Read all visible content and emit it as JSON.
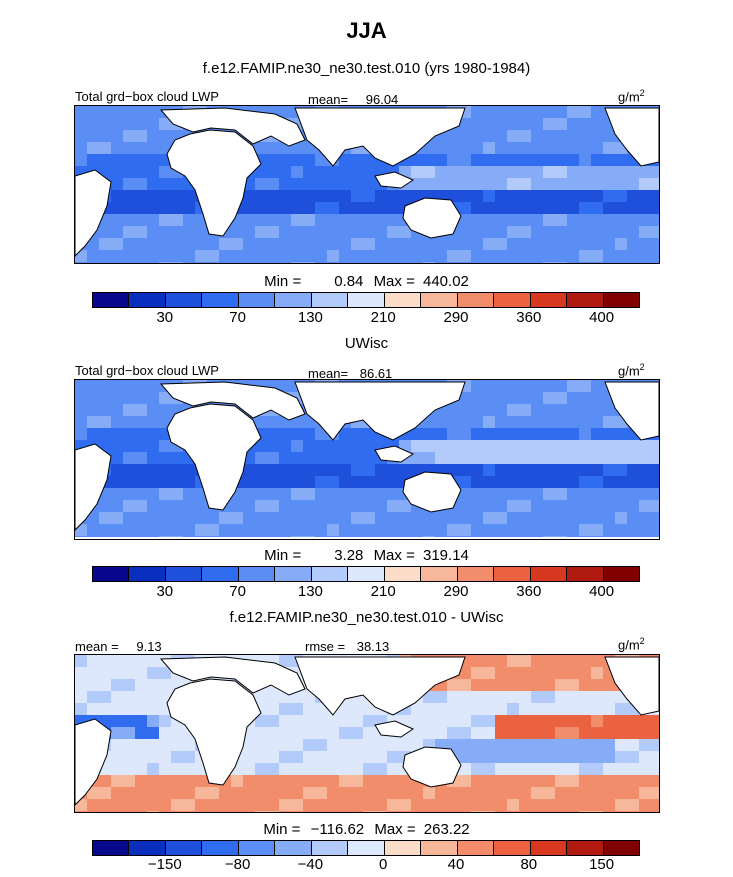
{
  "figure": {
    "title": "JJA",
    "unit_label": "g/m",
    "unit_sup": "2"
  },
  "colors": {
    "sequential": [
      "#08088c",
      "#0a2fbf",
      "#1e50dc",
      "#2f6cf0",
      "#5a8ef5",
      "#86abf7",
      "#b3cbfa",
      "#dde8fc",
      "#fbdcc9",
      "#f7b79b",
      "#f28d6c",
      "#ea6240",
      "#d8381f",
      "#b01a10",
      "#800000"
    ],
    "diverging": [
      "#08088c",
      "#0a2fbf",
      "#1e50dc",
      "#2f6cf0",
      "#5a8ef5",
      "#86abf7",
      "#b3cbfa",
      "#dde8fc",
      "#fbdcc9",
      "#f7b79b",
      "#f28d6c",
      "#ea6240",
      "#d8381f",
      "#b01a10",
      "#800000"
    ]
  },
  "chart_data": [
    {
      "type": "heatmap",
      "title": "f.e12.FAMIP.ne30_ne30.test.010 (yrs 1980-1984)",
      "left_label": "Total grd−box cloud LWP",
      "mean_label": "mean=",
      "mean_value": "96.04",
      "min_label": "Min =",
      "min_value": "0.84",
      "max_label": "Max =",
      "max_value": "440.02",
      "colorbar_ticks": [
        "30",
        "70",
        "130",
        "210",
        "290",
        "360",
        "400"
      ]
    },
    {
      "type": "heatmap",
      "title": "UWisc",
      "left_label": "Total grd−box cloud LWP",
      "mean_label": "mean=",
      "mean_value": "86.61",
      "min_label": "Min =",
      "min_value": "3.28",
      "max_label": "Max =",
      "max_value": "319.14",
      "colorbar_ticks": [
        "30",
        "70",
        "130",
        "210",
        "290",
        "360",
        "400"
      ]
    },
    {
      "type": "heatmap",
      "title": "f.e12.FAMIP.ne30_ne30.test.010 - UWisc",
      "mean_label": "mean =",
      "mean_value": "9.13",
      "rmse_label": "rmse =",
      "rmse_value": "38.13",
      "min_label": "Min =",
      "min_value": "−116.62",
      "max_label": "Max =",
      "max_value": "263.22",
      "colorbar_ticks": [
        "−150",
        "−80",
        "−40",
        "0",
        "40",
        "80",
        "150"
      ]
    }
  ]
}
